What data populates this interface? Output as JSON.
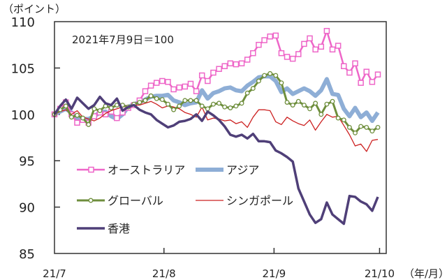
{
  "chart_data": {
    "type": "line",
    "ylabel": "（ポイント）",
    "xlabel_unit": "（年/月）",
    "annotation": "2021年7月9日＝100",
    "ylim": [
      85,
      110
    ],
    "yticks": [
      85,
      90,
      95,
      100,
      105,
      110
    ],
    "xticks": [
      {
        "label": "21/7",
        "index": 0
      },
      {
        "label": "21/8",
        "index": 19.3
      },
      {
        "label": "21/9",
        "index": 38.7
      },
      {
        "label": "21/10",
        "index": 57.3
      }
    ],
    "grid": false,
    "legend_position": "bottom-left inside",
    "series": [
      {
        "name": "オーストラリア",
        "color": "#ee66c8",
        "style": "square-markers",
        "values": [
          100,
          100.6,
          101.3,
          100.0,
          99.1,
          99.4,
          99.1,
          99.8,
          100.2,
          100.0,
          100.3,
          99.6,
          100.2,
          100.7,
          101.0,
          101.5,
          102.5,
          103.1,
          103.4,
          103.6,
          103.5,
          102.7,
          102.9,
          103.0,
          103.3,
          102.5,
          104.2,
          103.6,
          104.5,
          104.9,
          105.2,
          105.5,
          105.4,
          105.5,
          105.9,
          106.6,
          107.5,
          108.0,
          108.4,
          108.5,
          106.6,
          106.2,
          106.0,
          106.5,
          107.6,
          108.2,
          107.0,
          107.3,
          109.0,
          107.0,
          107.4,
          105.2,
          104.5,
          105.5,
          103.4,
          104.6,
          103.5,
          104.3
        ]
      },
      {
        "name": "アジア",
        "color": "#8eaed6",
        "style": "thick",
        "values": [
          100,
          100.3,
          100.6,
          100.2,
          99.5,
          99.5,
          99.5,
          99.8,
          100.2,
          100.3,
          99.8,
          99.5,
          100.0,
          100.8,
          101.1,
          101.3,
          101.6,
          101.9,
          102.0,
          102.0,
          102.1,
          101.5,
          101.3,
          101.0,
          101.2,
          101.3,
          102.6,
          101.7,
          102.3,
          102.5,
          102.8,
          102.9,
          102.6,
          102.5,
          103.1,
          103.5,
          104.0,
          104.1,
          104.1,
          103.6,
          102.4,
          102.8,
          102.2,
          102.5,
          102.8,
          102.5,
          102.0,
          102.6,
          103.8,
          102.2,
          102.1,
          100.6,
          99.8,
          100.7,
          99.7,
          100.2,
          99.3,
          100.2
        ]
      },
      {
        "name": "グローバル",
        "color": "#6e8e3c",
        "style": "circle-markers",
        "values": [
          100,
          100.5,
          100.9,
          99.7,
          99.9,
          99.6,
          98.9,
          100.6,
          100.4,
          100.9,
          100.7,
          101.0,
          101.0,
          100.8,
          101.1,
          101.3,
          101.5,
          102.0,
          101.7,
          101.6,
          101.1,
          100.5,
          100.9,
          101.5,
          101.5,
          101.5,
          100.9,
          100.6,
          101.1,
          101.2,
          100.8,
          100.7,
          100.9,
          101.2,
          102.3,
          102.8,
          103.6,
          104.2,
          104.4,
          104.2,
          103.4,
          101.3,
          101.0,
          101.4,
          101.0,
          100.6,
          101.2,
          100.0,
          101.1,
          101.4,
          99.6,
          99.4,
          98.6,
          98.0,
          98.7,
          98.6,
          98.2,
          98.6
        ]
      },
      {
        "name": "シンガポール",
        "color": "#cc2020",
        "style": "thin",
        "values": [
          100,
          100.3,
          100.5,
          100.0,
          100.4,
          99.7,
          99.5,
          99.3,
          99.6,
          100.1,
          100.4,
          100.6,
          100.8,
          100.9,
          101.0,
          101.0,
          101.2,
          101.4,
          101.1,
          100.7,
          100.9,
          100.8,
          100.6,
          100.2,
          100.0,
          99.7,
          100.8,
          99.4,
          99.6,
          99.5,
          99.3,
          99.4,
          99.0,
          99.2,
          98.6,
          99.7,
          100.5,
          100.5,
          100.4,
          99.2,
          98.9,
          99.7,
          99.3,
          99.0,
          98.8,
          99.4,
          98.3,
          99.2,
          100.0,
          99.7,
          99.8,
          98.8,
          97.8,
          96.6,
          96.8,
          96.0,
          97.2,
          97.3
        ]
      },
      {
        "name": "香港",
        "color": "#4f3f78",
        "style": "medium",
        "values": [
          100,
          100.9,
          101.6,
          100.6,
          101.8,
          101.2,
          100.6,
          101.0,
          101.9,
          101.2,
          101.0,
          101.7,
          100.4,
          100.8,
          101.0,
          100.5,
          100.2,
          100.0,
          99.4,
          99.0,
          98.6,
          98.8,
          99.2,
          99.3,
          99.5,
          100.0,
          99.3,
          100.3,
          99.9,
          99.4,
          98.7,
          97.8,
          97.6,
          97.8,
          97.4,
          97.9,
          97.1,
          97.1,
          97.0,
          96.1,
          95.8,
          95.4,
          94.9,
          92.0,
          90.6,
          89.2,
          88.3,
          88.7,
          90.5,
          89.2,
          88.7,
          88.2,
          91.2,
          91.1,
          90.6,
          90.3,
          89.6,
          91.1
        ]
      }
    ]
  }
}
